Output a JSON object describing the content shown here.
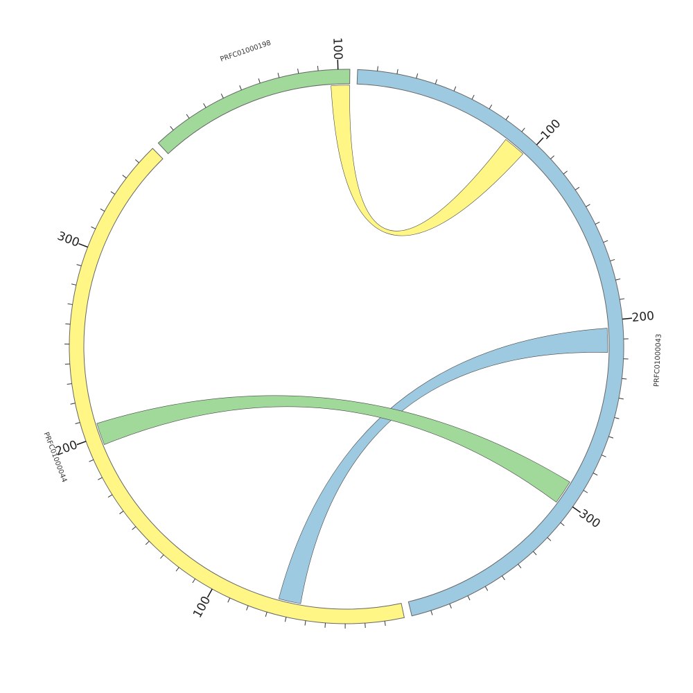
{
  "chart_data": {
    "type": "chord",
    "tick_interval": 10,
    "label_interval": 100,
    "segments": [
      {
        "name": "PRFC01000043",
        "length": 400,
        "color": "#9ecae1"
      },
      {
        "name": "PRFC01000044",
        "length": 360,
        "color": "#fff685"
      },
      {
        "name": "PRFC01000198",
        "length": 106,
        "color": "#a1d99b"
      }
    ],
    "links": [
      {
        "from": {
          "segment": "PRFC01000198",
          "start": 96,
          "end": 106
        },
        "to": {
          "segment": "PRFC01000043",
          "start": 86,
          "end": 98
        },
        "color": "#fff685"
      },
      {
        "from": {
          "segment": "PRFC01000043",
          "start": 204,
          "end": 217
        },
        "to": {
          "segment": "PRFC01000044",
          "start": 54,
          "end": 66
        },
        "color": "#9ecae1"
      },
      {
        "from": {
          "segment": "PRFC01000043",
          "start": 290,
          "end": 303
        },
        "to": {
          "segment": "PRFC01000044",
          "start": 195,
          "end": 207
        },
        "color": "#a1d99b"
      }
    ]
  }
}
